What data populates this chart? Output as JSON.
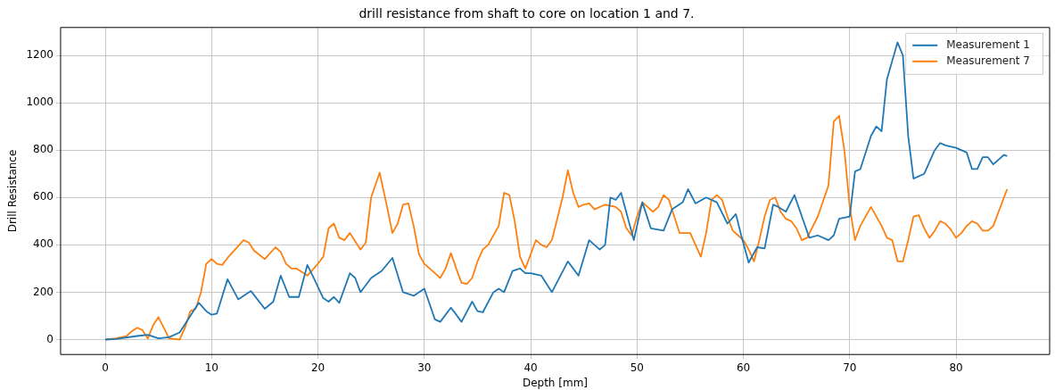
{
  "chart_data": {
    "type": "line",
    "title": "drill resistance from shaft to core on location 1 and 7.",
    "xlabel": "Depth [mm]",
    "ylabel": "Drill Resistance",
    "xlim": [
      -4.2,
      88.8
    ],
    "ylim": [
      -63,
      1318
    ],
    "xticks": [
      0,
      10,
      20,
      30,
      40,
      50,
      60,
      70,
      80
    ],
    "yticks": [
      0,
      200,
      400,
      600,
      800,
      1000,
      1200
    ],
    "grid": true,
    "legend": "top right",
    "marker": "none",
    "line_style": "solid",
    "series": [
      {
        "name": "Measurement 1",
        "color": "#1f77b4",
        "x": [
          0,
          1,
          3,
          4,
          5,
          6,
          7,
          8,
          8.8,
          9.5,
          10,
          10.5,
          11.5,
          12.5,
          13.7,
          15,
          15.8,
          16.5,
          17.3,
          18.2,
          19,
          19.5,
          20.5,
          21,
          21.5,
          22,
          23,
          23.5,
          24,
          25,
          26,
          27,
          28,
          29,
          30,
          31,
          31.5,
          32.5,
          33.5,
          34.5,
          35,
          35.5,
          36.5,
          37,
          37.5,
          38.3,
          39,
          39.5,
          40,
          41,
          42,
          43.5,
          44.5,
          45.5,
          46.5,
          47,
          47.5,
          48,
          48.5,
          49.7,
          50.5,
          51.3,
          52.5,
          53.3,
          54.3,
          54.8,
          55.5,
          56.5,
          57.5,
          58.5,
          59.3,
          59.8,
          60.5,
          61.3,
          62,
          62.8,
          63.3,
          64,
          64.8,
          65.5,
          66.2,
          67,
          68,
          68.5,
          69,
          70,
          70.5,
          71,
          72,
          72.5,
          73,
          73.5,
          74.5,
          75,
          75.5,
          76,
          77,
          78,
          78.5,
          79,
          80,
          81,
          81.5,
          82,
          82.5,
          83,
          83.5,
          84,
          84.5,
          84.8
        ],
        "values": [
          0,
          2,
          15,
          20,
          5,
          10,
          30,
          100,
          155,
          120,
          105,
          110,
          255,
          170,
          205,
          130,
          160,
          270,
          180,
          180,
          315,
          270,
          175,
          160,
          180,
          155,
          280,
          260,
          200,
          260,
          290,
          345,
          200,
          185,
          215,
          85,
          75,
          135,
          75,
          160,
          120,
          115,
          200,
          215,
          200,
          290,
          300,
          280,
          280,
          270,
          200,
          330,
          270,
          420,
          380,
          400,
          600,
          590,
          620,
          420,
          580,
          470,
          460,
          550,
          580,
          635,
          575,
          600,
          580,
          490,
          530,
          440,
          325,
          390,
          385,
          570,
          560,
          540,
          610,
          520,
          430,
          440,
          420,
          440,
          510,
          520,
          710,
          720,
          860,
          900,
          880,
          1100,
          1255,
          1200,
          860,
          680,
          700,
          800,
          830,
          820,
          810,
          790,
          720,
          720,
          770,
          770,
          740,
          760,
          780,
          775
        ]
      },
      {
        "name": "Measurement 7",
        "color": "#ff7f0e",
        "x": [
          0,
          1,
          2,
          2.5,
          3,
          3.5,
          4,
          4.5,
          5,
          5.5,
          6,
          7,
          7.5,
          8,
          8.5,
          9,
          9.5,
          10,
          10.5,
          11,
          11.5,
          12,
          13,
          13.5,
          14,
          15,
          16,
          16.5,
          17,
          17.5,
          18,
          19,
          20,
          20.5,
          21,
          21.5,
          22,
          22.5,
          23,
          24,
          24.5,
          25,
          25.8,
          26.5,
          27,
          27.5,
          28,
          28.5,
          29,
          29.5,
          30,
          31,
          31.5,
          32,
          32.5,
          33,
          33.5,
          34,
          34.5,
          35,
          35.5,
          36,
          37,
          37.5,
          38,
          38.5,
          39,
          39.5,
          40,
          40.5,
          41,
          41.5,
          42,
          43,
          43.5,
          44,
          44.5,
          45,
          45.5,
          46,
          47,
          48,
          48.5,
          49,
          49.5,
          50,
          50.5,
          51,
          51.5,
          52,
          52.5,
          53,
          53.5,
          54,
          55,
          55.5,
          56,
          56.5,
          57,
          57.5,
          58,
          58.5,
          59,
          59.5,
          60,
          60.5,
          61,
          61.5,
          62,
          62.5,
          63,
          63.5,
          64,
          64.5,
          65,
          65.5,
          66,
          67,
          68,
          68.5,
          69,
          69.5,
          70,
          70.5,
          71,
          72,
          73,
          73.5,
          74,
          74.5,
          75,
          75.5,
          76,
          76.5,
          77,
          77.5,
          78,
          78.5,
          79,
          79.5,
          80,
          80.5,
          81,
          81.5,
          82,
          82.5,
          83,
          83.5,
          84,
          84.8
        ],
        "values": [
          0,
          5,
          15,
          35,
          50,
          40,
          5,
          60,
          95,
          50,
          5,
          0,
          50,
          120,
          130,
          200,
          320,
          340,
          320,
          315,
          345,
          370,
          420,
          410,
          375,
          340,
          390,
          370,
          320,
          300,
          300,
          270,
          320,
          350,
          470,
          490,
          430,
          420,
          450,
          380,
          410,
          600,
          705,
          560,
          450,
          490,
          570,
          575,
          480,
          360,
          320,
          280,
          260,
          300,
          365,
          300,
          240,
          235,
          260,
          330,
          380,
          400,
          480,
          620,
          610,
          500,
          350,
          300,
          360,
          420,
          400,
          390,
          420,
          600,
          715,
          620,
          560,
          570,
          575,
          550,
          570,
          560,
          540,
          470,
          440,
          520,
          580,
          560,
          540,
          560,
          610,
          590,
          520,
          450,
          450,
          400,
          350,
          450,
          590,
          610,
          590,
          520,
          460,
          440,
          420,
          380,
          330,
          420,
          520,
          590,
          600,
          540,
          510,
          500,
          470,
          420,
          430,
          520,
          650,
          920,
          945,
          800,
          560,
          420,
          480,
          560,
          480,
          430,
          420,
          330,
          330,
          420,
          520,
          525,
          470,
          430,
          460,
          500,
          490,
          465,
          430,
          450,
          480,
          500,
          490,
          460,
          460,
          480,
          540,
          635
        ]
      }
    ]
  }
}
